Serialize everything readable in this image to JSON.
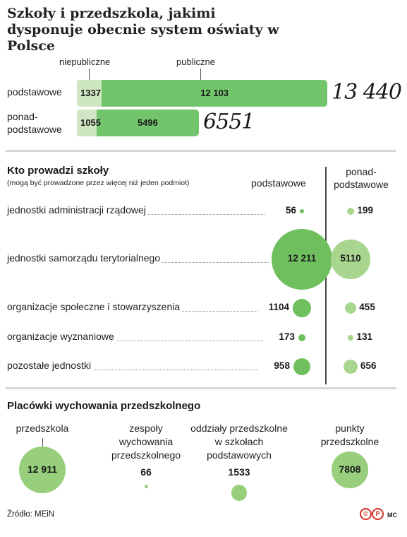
{
  "title": "Szkoły i przedszkola, jakimi dysponuje obecnie system oświaty w Polsce",
  "legend": {
    "nonpublic": "niepubliczne",
    "public": "publiczne"
  },
  "chart_data": [
    {
      "type": "bar",
      "categories": [
        "podstawowe",
        "ponad-podstawowe"
      ],
      "series": [
        {
          "name": "niepubliczne",
          "values": [
            1337,
            1055
          ]
        },
        {
          "name": "publiczne",
          "values": [
            12103,
            5496
          ]
        }
      ],
      "value_labels": {
        "niepubliczne": [
          "1337",
          "1055"
        ],
        "publiczne": [
          "12 103",
          "5496"
        ]
      },
      "totals": [
        "13 440",
        "6551"
      ],
      "category_labels": {
        "row1": "podstawowe",
        "row2_line1": "ponad-",
        "row2_line2": "podstawowe"
      },
      "colors": {
        "niepubliczne": "#cfe6c2",
        "publiczne": "#72c56a"
      }
    },
    {
      "type": "scatter",
      "title": "Kto prowadzi szkoły",
      "subtitle": "(mogą być prowadzone przez więcej niż jeden podmiot)",
      "column_headers": {
        "primary": "podstawowe",
        "secondary_line1": "ponad-",
        "secondary_line2": "podstawowe"
      },
      "categories": [
        "jednostki administracji rządowej",
        "jednostki samorządu terytorialnego",
        "organizacje społeczne i stowarzyszenia",
        "organizacje wyznaniowe",
        "pozostałe jednostki"
      ],
      "series": [
        {
          "name": "podstawowe",
          "values": [
            56,
            12211,
            1104,
            173,
            958
          ],
          "labels": [
            "56",
            "12 211",
            "1104",
            "173",
            "958"
          ]
        },
        {
          "name": "ponad-podstawowe",
          "values": [
            199,
            5110,
            455,
            131,
            656
          ],
          "labels": [
            "199",
            "5110",
            "455",
            "131",
            "656"
          ]
        }
      ],
      "colors": {
        "podstawowe": "#6fbf5f",
        "ponad-podstawowe": "#a9d68f"
      }
    },
    {
      "type": "scatter",
      "title": "Placówki wychowania przedszkolnego",
      "categories": [
        "przedszkola",
        "zespoły wychowania przedszkolnego",
        "oddziały przedszkolne w szkołach podstawowych",
        "punkty przedszkolne"
      ],
      "category_lines": [
        [
          "przedszkola"
        ],
        [
          "zespoły",
          "wychowania",
          "przedszkolnego"
        ],
        [
          "oddziały przedszkolne",
          "w szkołach",
          "podstawowych"
        ],
        [
          "punkty",
          "przedszkolne"
        ]
      ],
      "values": [
        12911,
        66,
        1533,
        7808
      ],
      "labels": [
        "12 911",
        "66",
        "1533",
        "7808"
      ],
      "color": "#98cf7c"
    }
  ],
  "footer": {
    "source": "Źródło: MEiN",
    "logo_text": "©P",
    "author": "MC"
  }
}
